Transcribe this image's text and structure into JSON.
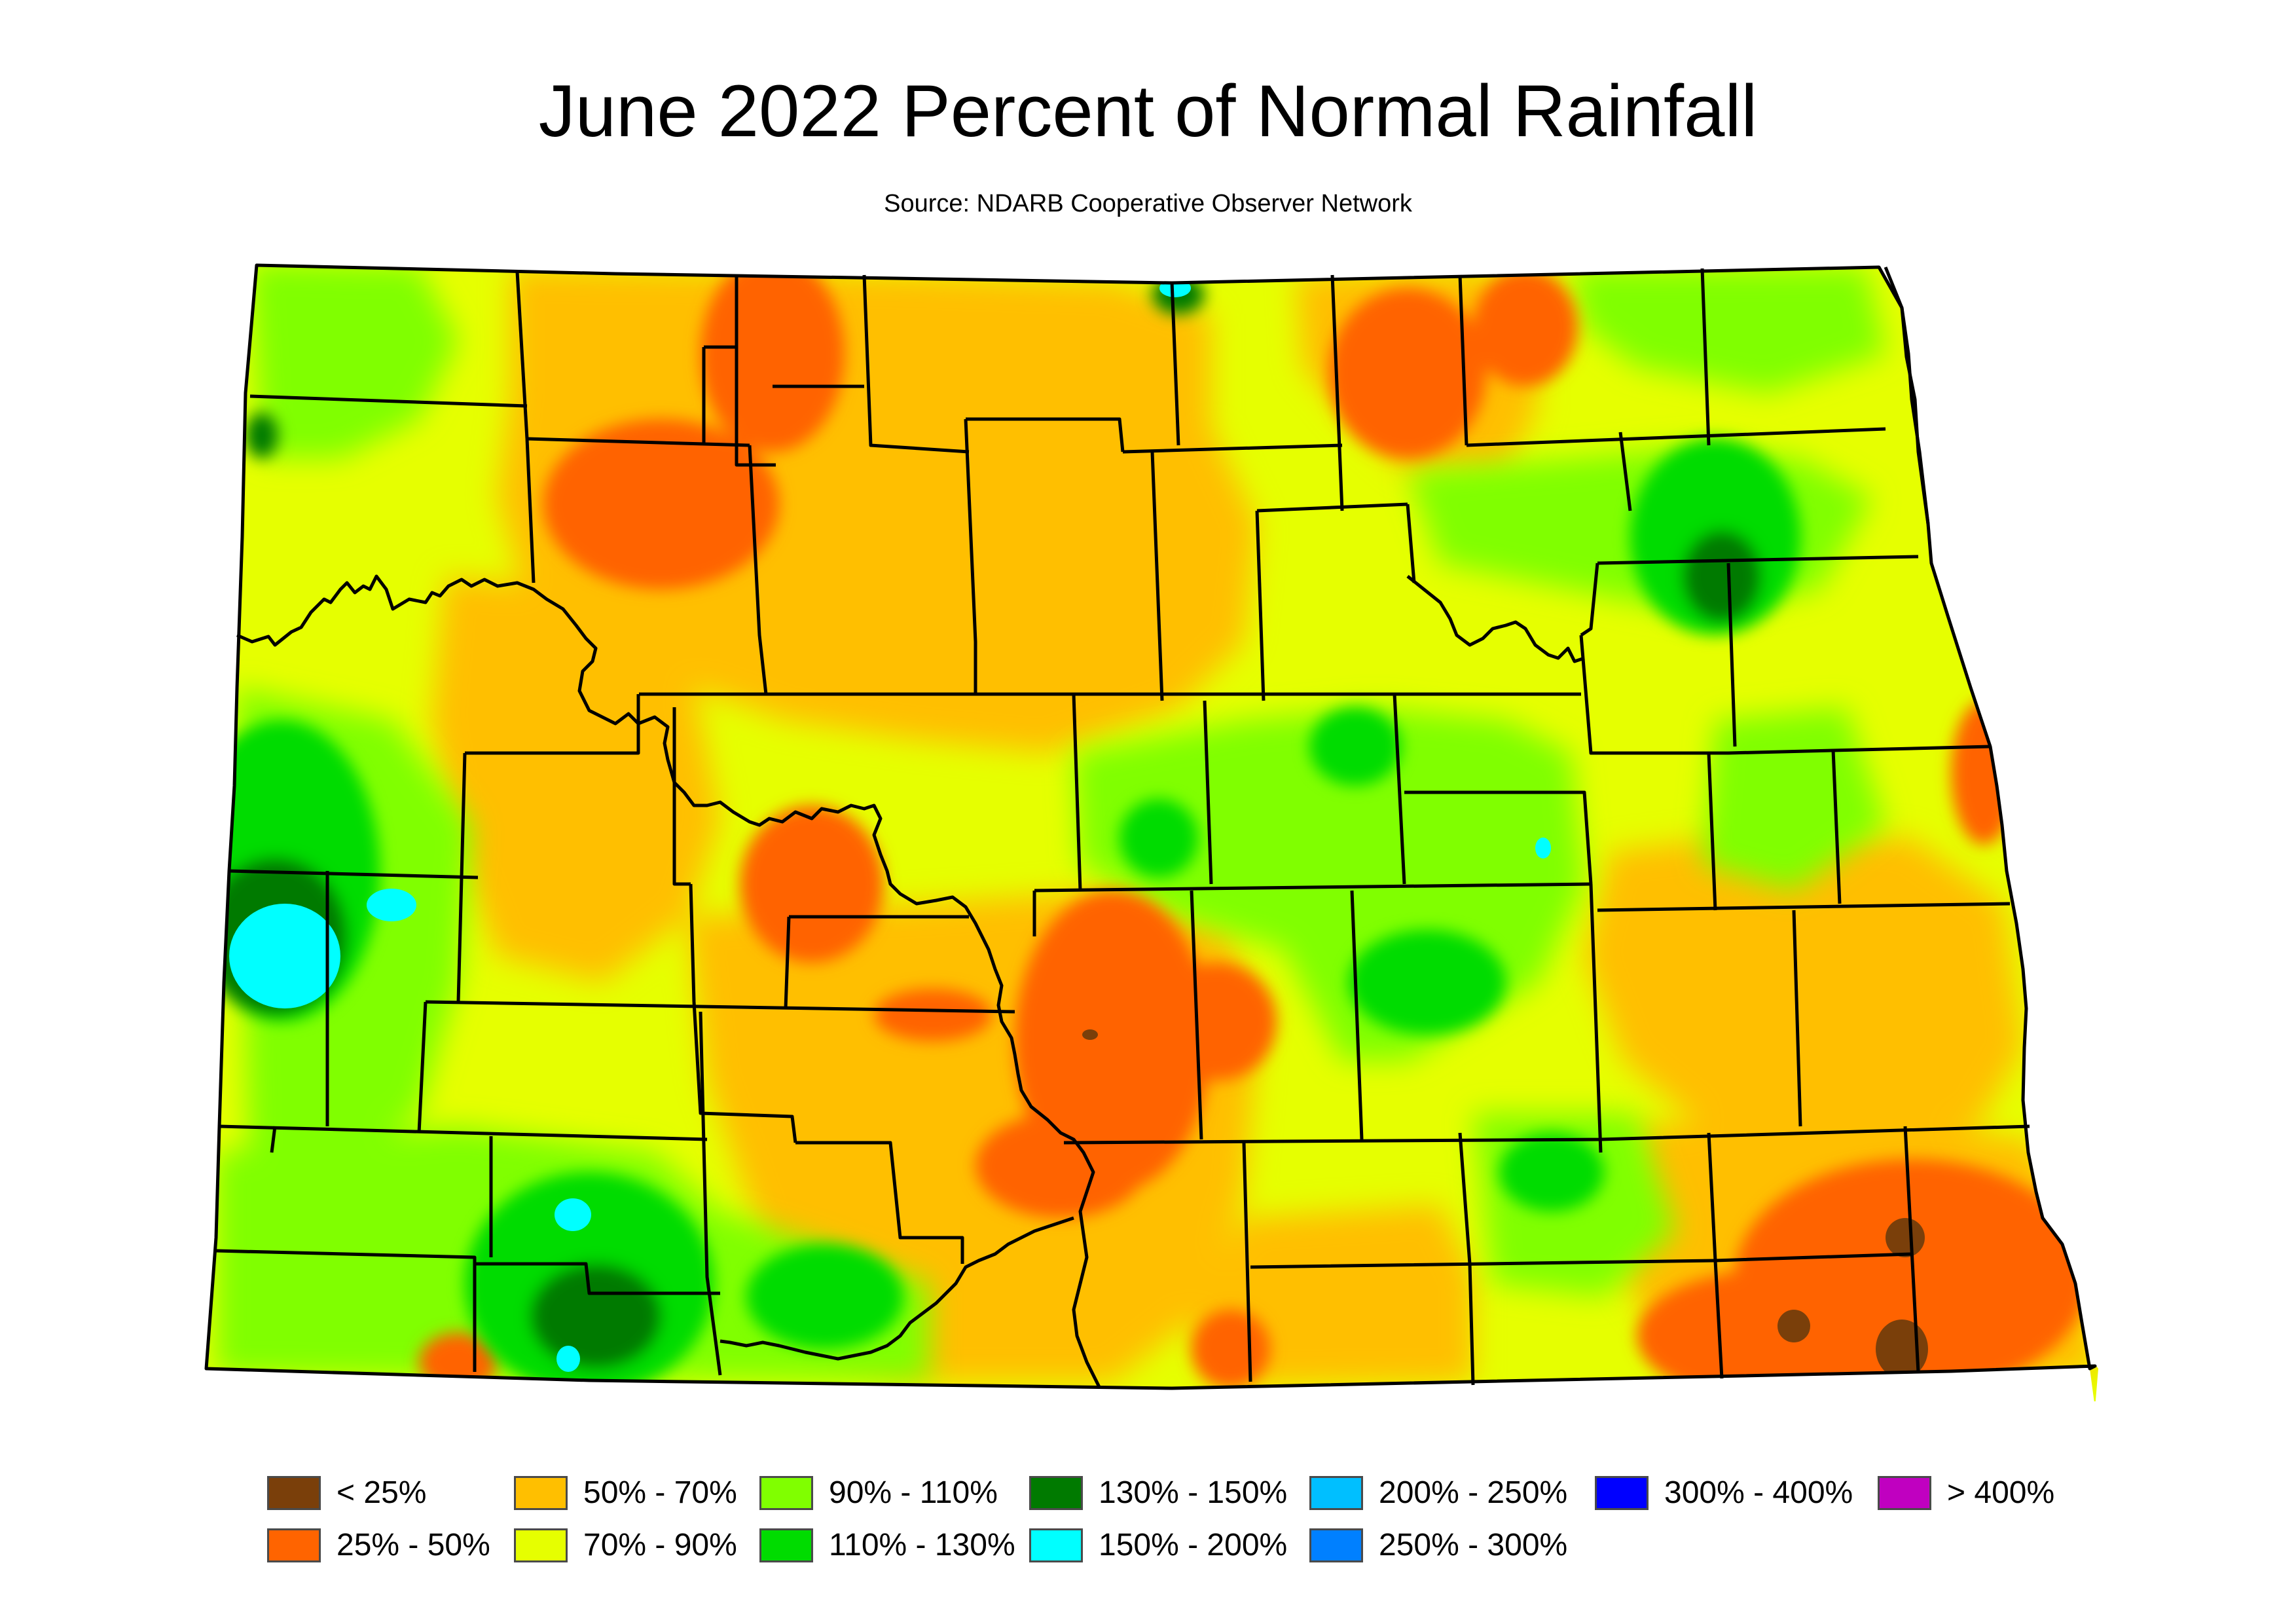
{
  "title": "June 2022 Percent of Normal Rainfall",
  "subtitle": "Source: NDARB Cooperative Observer Network",
  "legend": [
    {
      "label": "< 25%",
      "color": "#7a3f0a"
    },
    {
      "label": "50% - 70%",
      "color": "#ffbf00"
    },
    {
      "label": "90% - 110%",
      "color": "#80ff00"
    },
    {
      "label": "130% - 150%",
      "color": "#007a00"
    },
    {
      "label": "200% - 250%",
      "color": "#00bfff"
    },
    {
      "label": "300% - 400%",
      "color": "#0000ff"
    },
    {
      "label": "> 400%",
      "color": "#c000c0"
    },
    {
      "label": "25% - 50%",
      "color": "#ff6400"
    },
    {
      "label": "70% - 90%",
      "color": "#e6ff00"
    },
    {
      "label": "110% - 130%",
      "color": "#00dc00"
    },
    {
      "label": "150% - 200%",
      "color": "#00ffff"
    },
    {
      "label": "250% - 300%",
      "color": "#0080ff"
    }
  ],
  "colors": {
    "base_fill": "#e6ff00",
    "county_lines": "#000000",
    "legend_border": "#4a4a4a"
  }
}
